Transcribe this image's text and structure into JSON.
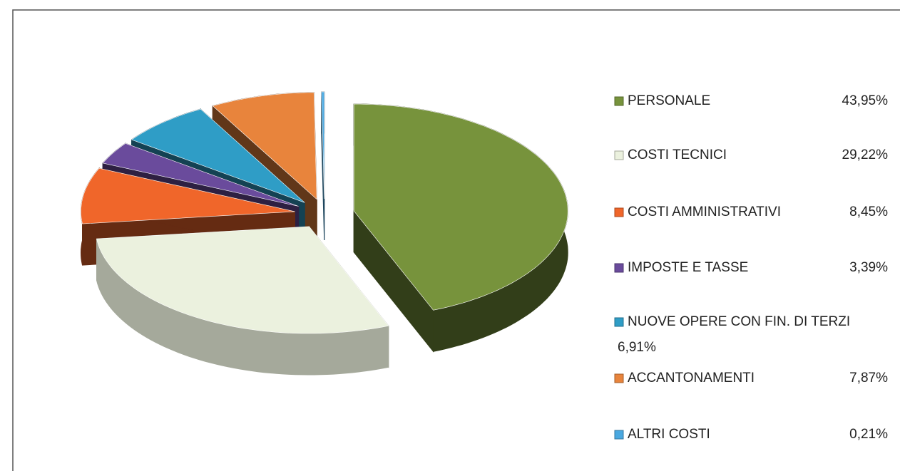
{
  "chart_data": {
    "type": "pie",
    "categories": [
      "PERSONALE",
      "COSTI TECNICI",
      "COSTI AMMINISTRATIVI",
      "IMPOSTE E TASSE",
      "NUOVE OPERE CON FIN. DI TERZI",
      "ACCANTONAMENTI",
      "ALTRI COSTI"
    ],
    "values": [
      43.95,
      29.22,
      8.45,
      3.39,
      6.91,
      7.87,
      0.21
    ],
    "value_labels": [
      "43,95%",
      "29,22%",
      "8,45%",
      "3,39%",
      "6,91%",
      "7,87%",
      "0,21%"
    ],
    "colors": [
      "#77933c",
      "#ebf1de",
      "#f0662a",
      "#6a4b9c",
      "#2f9dc6",
      "#e8843c",
      "#4aa8e0"
    ],
    "legend": "right"
  }
}
